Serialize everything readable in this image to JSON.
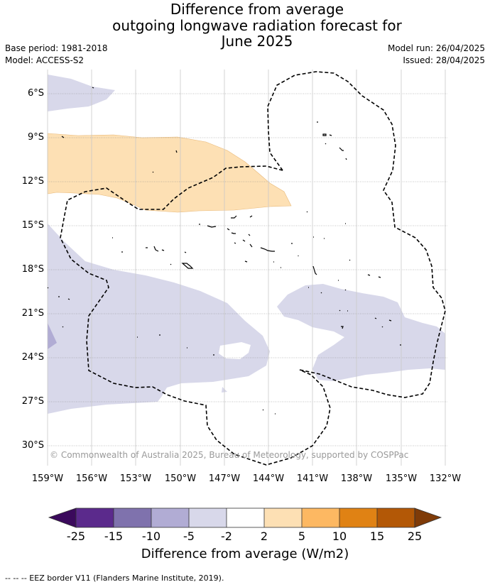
{
  "title": {
    "line1": "Difference from average",
    "line2": "outgoing longwave radiation forecast for",
    "line3": "June 2025"
  },
  "meta": {
    "base_period": "Base period: 1981-2018",
    "model": "Model: ACCESS-S2",
    "model_run": "Model run: 26/04/2025",
    "issued": "Issued: 28/04/2025"
  },
  "lat_labels": [
    "6°S",
    "9°S",
    "12°S",
    "15°S",
    "18°S",
    "21°S",
    "24°S",
    "27°S",
    "30°S"
  ],
  "lon_labels": [
    "159°W",
    "156°W",
    "153°W",
    "150°W",
    "147°W",
    "144°W",
    "141°W",
    "138°W",
    "135°W",
    "132°W"
  ],
  "copyright": "© Commonwealth of Australia 2025, Bureau of Meteorology, supported by COSPPac",
  "colorbar": {
    "ticks": [
      "-25",
      "-15",
      "-10",
      "-5",
      "-2",
      "2",
      "5",
      "10",
      "15",
      "25"
    ],
    "label": "Difference from average (W/m2)",
    "colors": {
      "under": "#3b0a5c",
      "c1": "#5b2a8c",
      "c2": "#7f72ad",
      "c3": "#b1acd4",
      "c4": "#d8d8ea",
      "c5": "#ffffff",
      "c6": "#fde0b4",
      "c7": "#fdb862",
      "c8": "#e08214",
      "c9": "#b35806",
      "over": "#7f3b08"
    }
  },
  "legend": "--  --  -- EEZ border V11 (Flanders Marine Institute, 2019)."
}
